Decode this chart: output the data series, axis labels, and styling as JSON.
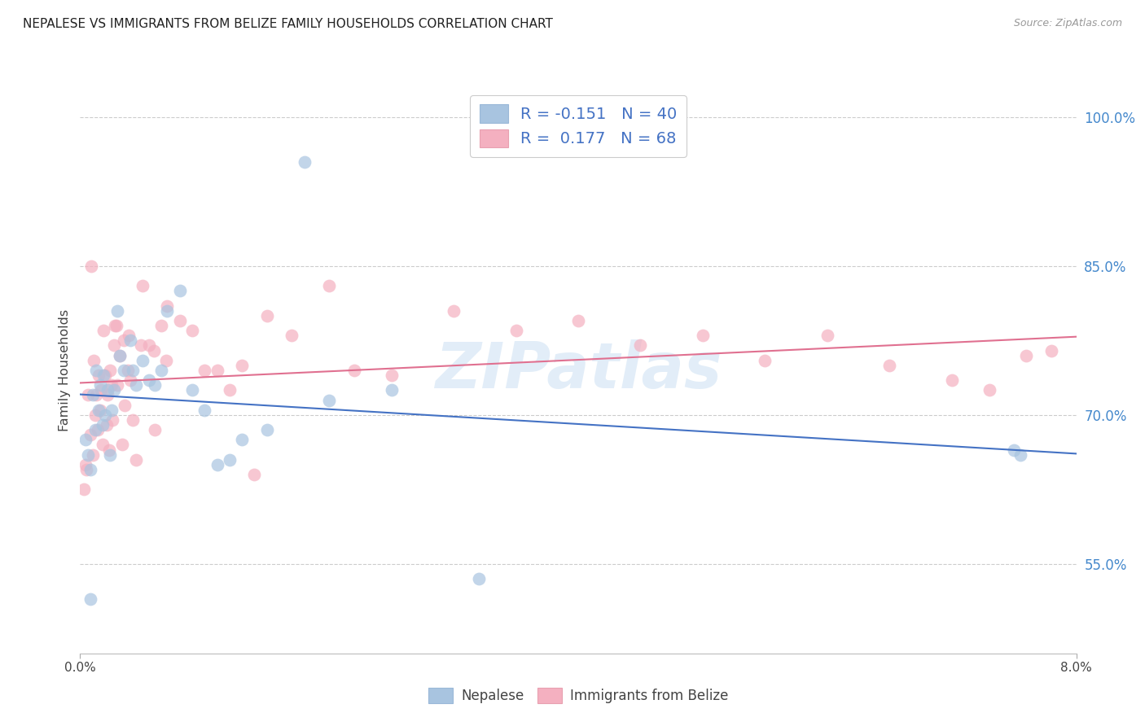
{
  "title": "NEPALESE VS IMMIGRANTS FROM BELIZE FAMILY HOUSEHOLDS CORRELATION CHART",
  "source": "Source: ZipAtlas.com",
  "ylabel": "Family Households",
  "right_yticks": [
    55.0,
    70.0,
    85.0,
    100.0
  ],
  "xlim": [
    0.0,
    8.0
  ],
  "ylim": [
    46.0,
    103.0
  ],
  "watermark": "ZIPatlas",
  "nepalese_color": "#a8c4e0",
  "belize_color": "#f4b0c0",
  "trendline_blue": "#4472c4",
  "trendline_pink": "#e07090",
  "legend_R_blue": "-0.151",
  "legend_N_blue": "40",
  "legend_R_pink": "0.177",
  "legend_N_pink": "68",
  "nepalese_x": [
    0.04,
    0.06,
    0.08,
    0.1,
    0.12,
    0.13,
    0.15,
    0.16,
    0.18,
    0.19,
    0.2,
    0.22,
    0.24,
    0.25,
    0.27,
    0.3,
    0.32,
    0.35,
    0.4,
    0.42,
    0.45,
    0.5,
    0.55,
    0.6,
    0.65,
    0.7,
    0.8,
    0.9,
    1.0,
    1.1,
    1.2,
    1.3,
    1.5,
    1.8,
    2.0,
    2.5,
    3.2,
    7.5,
    7.55,
    0.08
  ],
  "nepalese_y": [
    67.5,
    66.0,
    64.5,
    72.0,
    68.5,
    74.5,
    70.5,
    73.0,
    69.0,
    74.0,
    70.0,
    72.5,
    66.0,
    70.5,
    72.5,
    80.5,
    76.0,
    74.5,
    77.5,
    74.5,
    73.0,
    75.5,
    73.5,
    73.0,
    74.5,
    80.5,
    82.5,
    72.5,
    70.5,
    65.0,
    65.5,
    67.5,
    68.5,
    95.5,
    71.5,
    72.5,
    53.5,
    66.5,
    66.0,
    51.5
  ],
  "belize_x": [
    0.03,
    0.04,
    0.06,
    0.08,
    0.1,
    0.11,
    0.12,
    0.13,
    0.14,
    0.15,
    0.16,
    0.17,
    0.18,
    0.2,
    0.21,
    0.22,
    0.23,
    0.24,
    0.25,
    0.26,
    0.27,
    0.28,
    0.3,
    0.32,
    0.34,
    0.35,
    0.36,
    0.38,
    0.4,
    0.42,
    0.45,
    0.5,
    0.55,
    0.6,
    0.65,
    0.7,
    0.8,
    0.9,
    1.0,
    1.1,
    1.2,
    1.3,
    1.4,
    1.5,
    1.7,
    2.0,
    2.5,
    3.0,
    3.5,
    4.0,
    4.5,
    5.0,
    5.5,
    6.0,
    6.5,
    7.0,
    7.3,
    7.6,
    7.8,
    0.05,
    0.09,
    0.19,
    0.29,
    0.39,
    0.49,
    0.59,
    0.69,
    2.2
  ],
  "belize_y": [
    62.5,
    65.0,
    72.0,
    68.0,
    66.0,
    75.5,
    70.0,
    72.0,
    68.5,
    74.0,
    70.5,
    72.5,
    67.0,
    74.0,
    69.0,
    72.0,
    66.5,
    74.5,
    73.0,
    69.5,
    77.0,
    79.0,
    73.0,
    76.0,
    67.0,
    77.5,
    71.0,
    74.5,
    73.5,
    69.5,
    65.5,
    83.0,
    77.0,
    68.5,
    79.0,
    81.0,
    79.5,
    78.5,
    74.5,
    74.5,
    72.5,
    75.0,
    64.0,
    80.0,
    78.0,
    83.0,
    74.0,
    80.5,
    78.5,
    79.5,
    77.0,
    78.0,
    75.5,
    78.0,
    75.0,
    73.5,
    72.5,
    76.0,
    76.5,
    64.5,
    85.0,
    78.5,
    79.0,
    78.0,
    77.0,
    76.5,
    75.5,
    74.5
  ]
}
